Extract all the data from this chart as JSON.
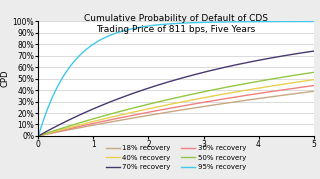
{
  "title_line1": "Cumulative Probability of Default of CDS",
  "title_line2": "Trading Price of 811 bps, Five Years",
  "ylabel": "CPD",
  "spread": 0.0811,
  "recovery_rates": [
    0.18,
    0.3,
    0.4,
    0.5,
    0.7,
    0.95
  ],
  "recovery_labels": [
    "18% recovery",
    "30% recovery",
    "40% recovery",
    "50% recovery",
    "70% recovery",
    "95% recovery"
  ],
  "colors": [
    "#c8a882",
    "#f08080",
    "#e8d050",
    "#90c840",
    "#483870",
    "#40c8e8"
  ],
  "legend_order": [
    0,
    2,
    4,
    1,
    3,
    5
  ],
  "xlim": [
    0,
    5
  ],
  "ylim": [
    0,
    1.0
  ],
  "ytick_vals": [
    0.0,
    0.1,
    0.2,
    0.3,
    0.4,
    0.5,
    0.6,
    0.7,
    0.8,
    0.9,
    1.0
  ],
  "ytick_labels": [
    "0%",
    "10%",
    "20%",
    "30%",
    "40%",
    "50%",
    "60%",
    "70%",
    "80%",
    "90%",
    "100%"
  ],
  "xticks": [
    0,
    1,
    2,
    3,
    4,
    5
  ],
  "background_color": "#ececec",
  "plot_background": "#ffffff",
  "title_fontsize": 6.5,
  "axis_label_fontsize": 6,
  "tick_fontsize": 5.5,
  "legend_fontsize": 5,
  "linewidth": 1.0
}
